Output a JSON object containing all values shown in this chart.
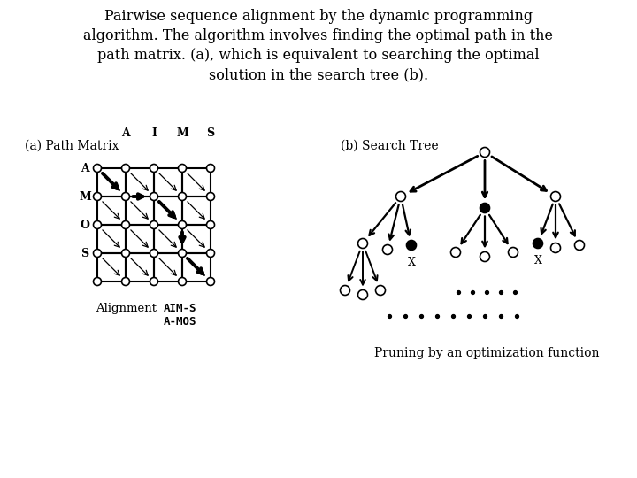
{
  "title_lines": [
    "Pairwise sequence alignment by the dynamic programming",
    "algorithm. The algorithm involves finding the optimal path in the",
    "path matrix. (a), which is equivalent to searching the optimal",
    "solution in the search tree (b)."
  ],
  "label_a": "(a) Path Matrix",
  "label_b": "(b) Search Tree",
  "matrix_cols": [
    "A",
    "I",
    "M",
    "S"
  ],
  "matrix_rows": [
    "A",
    "M",
    "O",
    "S"
  ],
  "pruning_text": "Pruning by an optimization function",
  "bg_color": "#ffffff"
}
